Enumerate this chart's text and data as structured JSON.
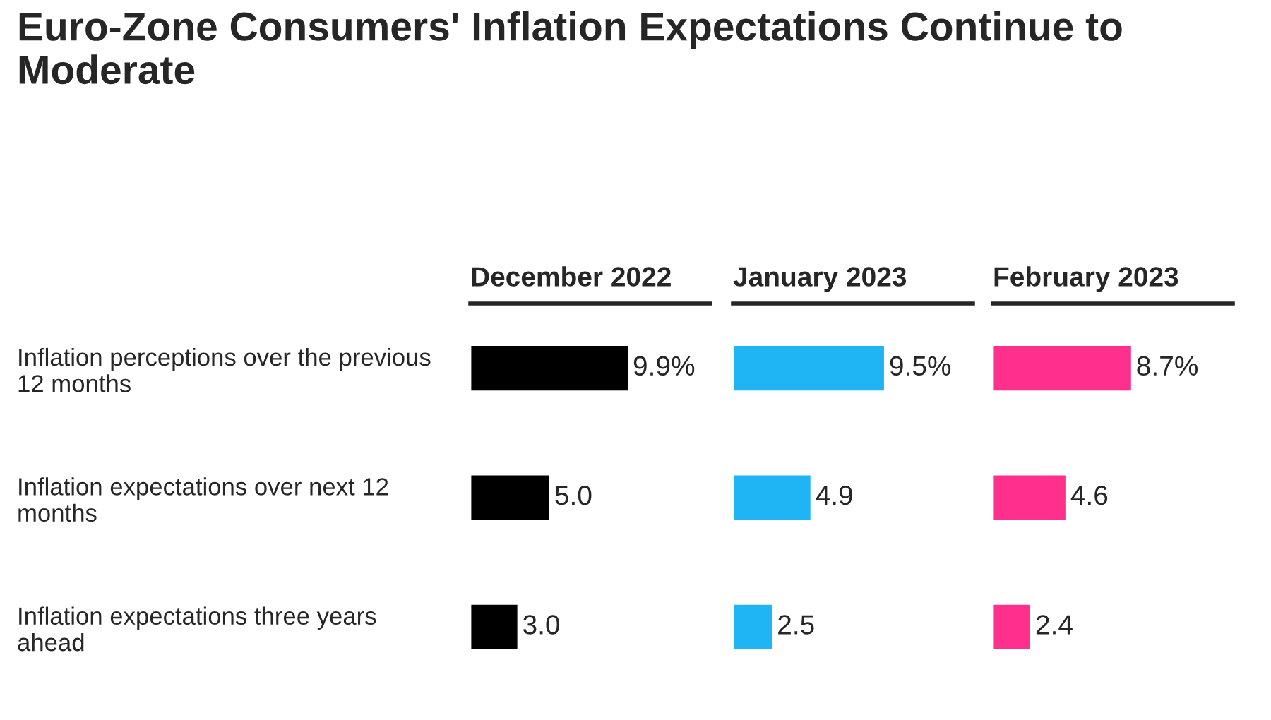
{
  "chart_data": [
    {
      "type": "bar",
      "orientation": "horizontal",
      "title": "Euro-Zone Consumers' Inflation Expectations Continue to Moderate",
      "categories": [
        "Inflation perceptions over the previous 12 months",
        "Inflation expectations over next 12 months",
        "Inflation expectations three years ahead"
      ],
      "xlim": [
        0,
        15
      ],
      "tick_labels": "y",
      "series": [
        {
          "name": "December 2022",
          "color": "#000000",
          "values": [
            9.9,
            5.0,
            3.0
          ],
          "value_labels": [
            "9.9%",
            "5.0",
            "3.0"
          ]
        }
      ]
    },
    {
      "type": "bar",
      "orientation": "horizontal",
      "categories": [
        null,
        null,
        null
      ],
      "xlim": [
        0,
        15
      ],
      "tick_labels": false,
      "series": [
        {
          "name": "January 2023",
          "color": "#1fb5f5",
          "values": [
            9.5,
            4.9,
            2.5
          ],
          "value_labels": [
            "9.5%",
            "4.9",
            "2.5"
          ]
        }
      ]
    },
    {
      "type": "bar",
      "orientation": "horizontal",
      "categories": [
        null,
        null,
        null
      ],
      "xlim": [
        0,
        15
      ],
      "tick_labels": false,
      "series": [
        {
          "name": "February 2023",
          "color": "#ff2f8e",
          "values": [
            8.7,
            4.6,
            2.4
          ],
          "value_labels": [
            "8.7%",
            "4.6",
            "2.4"
          ]
        }
      ]
    }
  ]
}
